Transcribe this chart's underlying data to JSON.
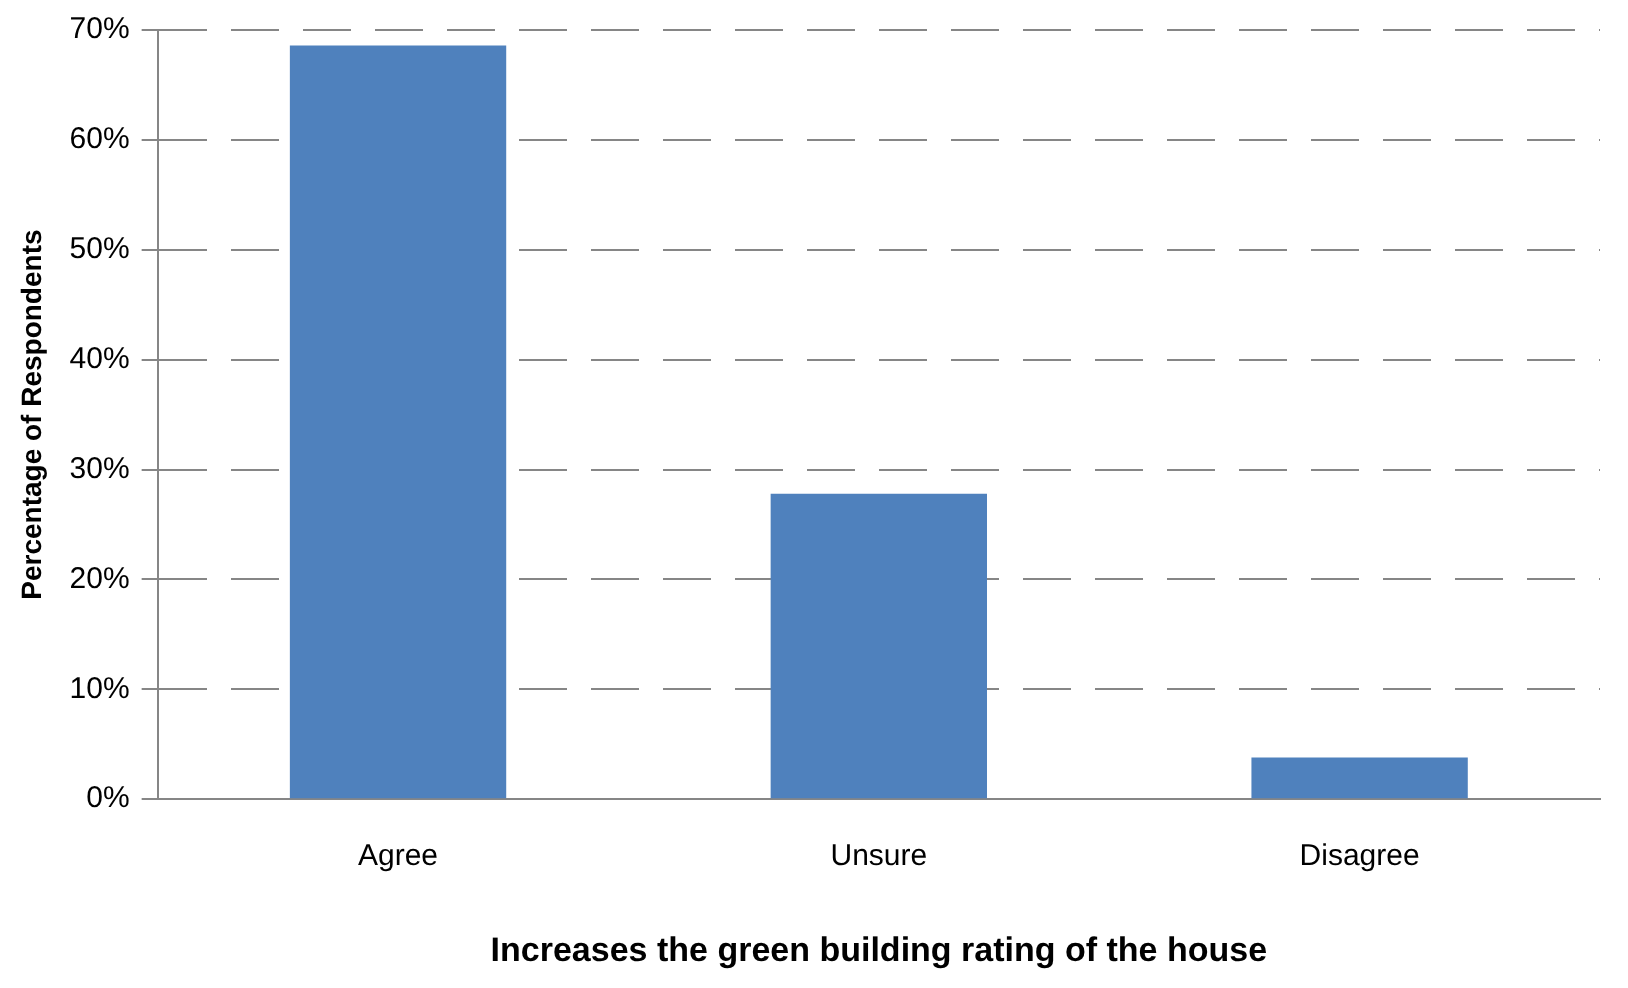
{
  "chart_data": {
    "type": "bar",
    "xlabel": "Increases the green building rating of the house",
    "ylabel": "Percentage of Respondents",
    "categories": [
      "Agree",
      "Unsure",
      "Disagree"
    ],
    "values": [
      68.6,
      27.8,
      3.8
    ],
    "color": "#4f81bd",
    "ylim": [
      0,
      70
    ],
    "yticks": [
      {
        "value": 0,
        "label": "0%"
      },
      {
        "value": 10,
        "label": "10%"
      },
      {
        "value": 20,
        "label": "20%"
      },
      {
        "value": 30,
        "label": "30%"
      },
      {
        "value": 40,
        "label": "40%"
      },
      {
        "value": 50,
        "label": "50%"
      },
      {
        "value": 60,
        "label": "60%"
      },
      {
        "value": 70,
        "label": "70%"
      }
    ],
    "grid": "y",
    "legend": false
  }
}
